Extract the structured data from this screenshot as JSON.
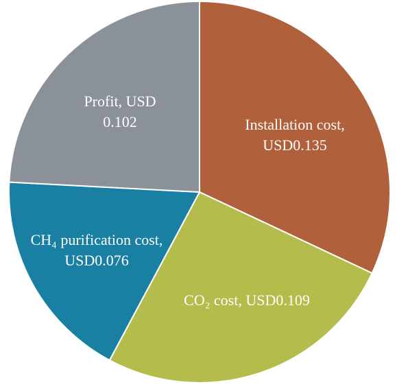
{
  "chart_data": {
    "type": "pie",
    "labels": [
      "Installation cost, USD0.135",
      "CO₂ cost, USD0.109",
      "CH₄ purification cost, USD0.076",
      "Profit, USD 0.102"
    ],
    "values": [
      0.135,
      0.109,
      0.076,
      0.102
    ],
    "colors": [
      "#b0603a",
      "#b4bd4b",
      "#1a80a3",
      "#8a9199"
    ]
  }
}
